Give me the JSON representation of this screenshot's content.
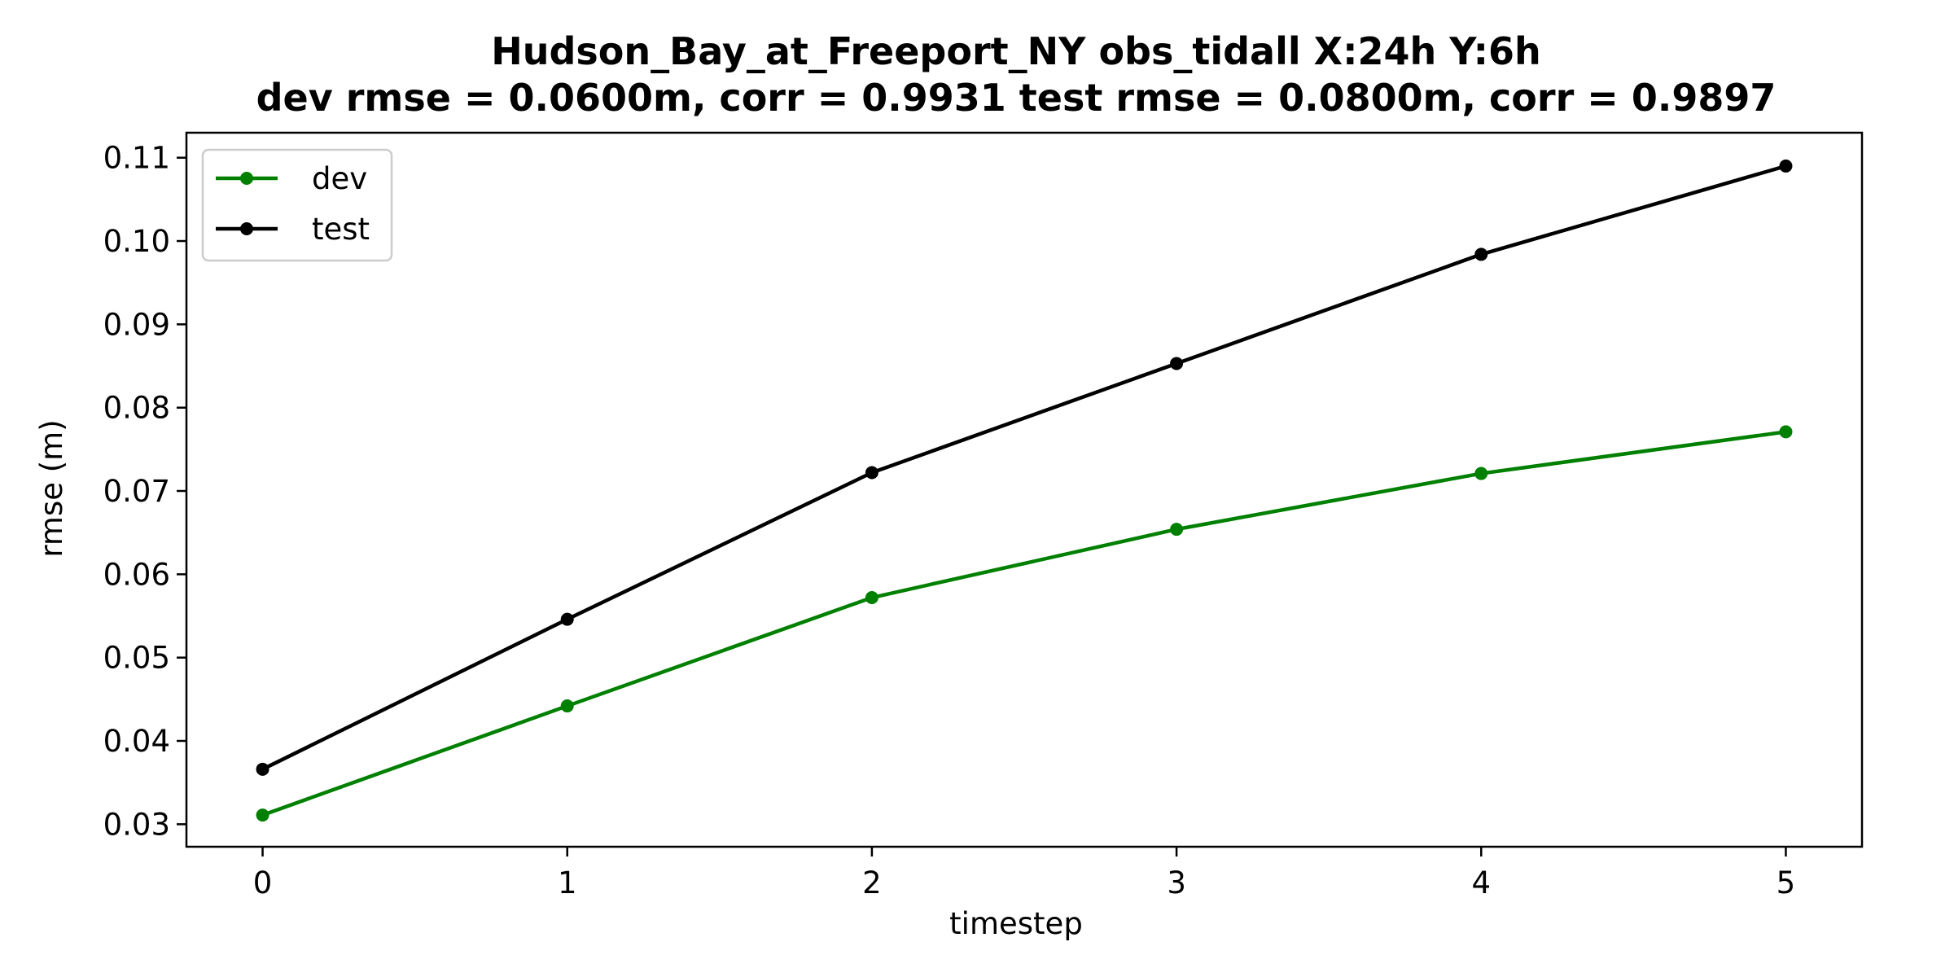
{
  "chart_data": {
    "type": "line",
    "title": "Hudson_Bay_at_Freeport_NY   obs_tidall   X:24h   Y:6h",
    "subtitle": "dev rmse = 0.0600m, corr = 0.9931   test rmse = 0.0800m, corr = 0.9897",
    "xlabel": "timestep",
    "ylabel": "rmse (m)",
    "x": [
      0,
      1,
      2,
      3,
      4,
      5
    ],
    "xlim": [
      -0.25,
      5.25
    ],
    "ylim": [
      0.0273,
      0.113
    ],
    "xticks": [
      0,
      1,
      2,
      3,
      4,
      5
    ],
    "xtick_labels": [
      "0",
      "1",
      "2",
      "3",
      "4",
      "5"
    ],
    "yticks": [
      0.03,
      0.04,
      0.05,
      0.06,
      0.07,
      0.08,
      0.09,
      0.1,
      0.11
    ],
    "ytick_labels": [
      "0.03",
      "0.04",
      "0.05",
      "0.06",
      "0.07",
      "0.08",
      "0.09",
      "0.10",
      "0.11"
    ],
    "grid": false,
    "legend": "top-left",
    "series": [
      {
        "name": "dev",
        "color": "#008000",
        "values": [
          0.0311,
          0.0442,
          0.0572,
          0.0654,
          0.0721,
          0.0771
        ]
      },
      {
        "name": "test",
        "color": "#000000",
        "values": [
          0.0366,
          0.0546,
          0.0722,
          0.0853,
          0.0984,
          0.109
        ]
      }
    ]
  }
}
